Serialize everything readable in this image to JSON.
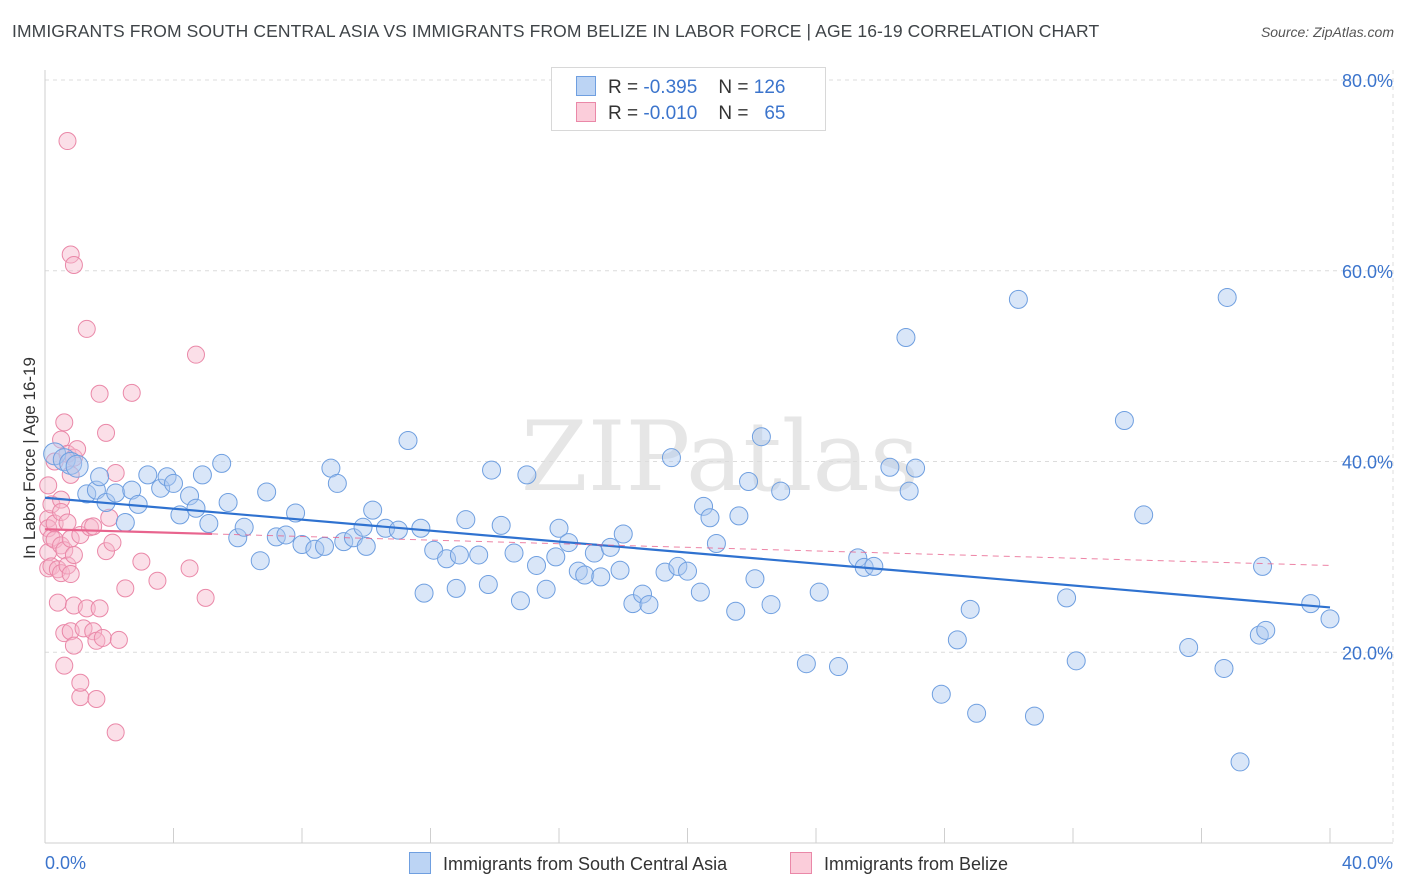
{
  "title": "IMMIGRANTS FROM SOUTH CENTRAL ASIA VS IMMIGRANTS FROM BELIZE IN LABOR FORCE | AGE 16-19 CORRELATION CHART",
  "source": "Source: ZipAtlas.com",
  "watermark": "ZIPatlas",
  "legend": {
    "rows": [
      {
        "r_label": "R =",
        "r_value": "-0.395",
        "n_label": "N =",
        "n_value": "126"
      },
      {
        "r_label": "R =",
        "r_value": "-0.010",
        "n_label": "N =",
        "n_value": "65"
      }
    ]
  },
  "colors": {
    "blue_fill": "#aac8f0",
    "blue_stroke": "#6f9fe0",
    "blue_line": "#2f72d0",
    "pink_fill": "#f6b8cc",
    "pink_stroke": "#ea88a8",
    "pink_line": "#e8648e",
    "tick_label": "#3b74cc",
    "grid": "#dcdcdc"
  },
  "chart_data": {
    "type": "scatter",
    "title": "IMMIGRANTS FROM SOUTH CENTRAL ASIA VS IMMIGRANTS FROM BELIZE IN LABOR FORCE | AGE 16-19 CORRELATION CHART",
    "xlabel": "",
    "ylabel": "In Labor Force | Age 16-19",
    "xlim": [
      0,
      40
    ],
    "ylim": [
      0,
      80
    ],
    "x_tick_labels": [
      "0.0%",
      "40.0%"
    ],
    "y_ticks": [
      20,
      40,
      60,
      80
    ],
    "y_tick_labels": [
      "20.0%",
      "40.0%",
      "60.0%",
      "80.0%"
    ],
    "grid": true,
    "legend_position": "top-center",
    "series": [
      {
        "name": "Immigrants from South Central Asia",
        "r": -0.395,
        "n": 126,
        "trend": {
          "x": [
            0,
            40
          ],
          "y": [
            36.2,
            24.7
          ]
        },
        "points": [
          [
            0.3,
            40.8
          ],
          [
            0.6,
            40.2
          ],
          [
            0.8,
            39.8
          ],
          [
            1.0,
            39.5
          ],
          [
            1.3,
            36.6
          ],
          [
            1.6,
            37.0
          ],
          [
            1.7,
            38.4
          ],
          [
            1.9,
            35.7
          ],
          [
            2.2,
            36.7
          ],
          [
            2.5,
            33.6
          ],
          [
            2.7,
            37.0
          ],
          [
            2.9,
            35.5
          ],
          [
            3.2,
            38.6
          ],
          [
            3.6,
            37.2
          ],
          [
            3.8,
            38.4
          ],
          [
            4.0,
            37.7
          ],
          [
            4.2,
            34.4
          ],
          [
            4.5,
            36.4
          ],
          [
            4.7,
            35.1
          ],
          [
            4.9,
            38.6
          ],
          [
            5.1,
            33.5
          ],
          [
            5.5,
            39.8
          ],
          [
            5.7,
            35.7
          ],
          [
            6.0,
            32.0
          ],
          [
            6.2,
            33.1
          ],
          [
            6.7,
            29.6
          ],
          [
            6.9,
            36.8
          ],
          [
            7.2,
            32.1
          ],
          [
            7.5,
            32.3
          ],
          [
            7.8,
            34.6
          ],
          [
            8.0,
            31.3
          ],
          [
            8.4,
            30.8
          ],
          [
            8.7,
            31.1
          ],
          [
            8.9,
            39.3
          ],
          [
            9.1,
            37.7
          ],
          [
            9.3,
            31.6
          ],
          [
            9.6,
            32.0
          ],
          [
            9.9,
            33.1
          ],
          [
            10.0,
            31.1
          ],
          [
            10.2,
            34.9
          ],
          [
            10.6,
            33.0
          ],
          [
            11.0,
            32.8
          ],
          [
            11.3,
            42.2
          ],
          [
            11.7,
            33.0
          ],
          [
            11.8,
            26.2
          ],
          [
            12.1,
            30.7
          ],
          [
            12.5,
            29.8
          ],
          [
            12.8,
            26.7
          ],
          [
            12.9,
            30.2
          ],
          [
            13.1,
            33.9
          ],
          [
            13.5,
            30.2
          ],
          [
            13.8,
            27.1
          ],
          [
            13.9,
            39.1
          ],
          [
            14.2,
            33.3
          ],
          [
            14.6,
            30.4
          ],
          [
            14.8,
            25.4
          ],
          [
            15.0,
            38.6
          ],
          [
            15.3,
            29.1
          ],
          [
            15.6,
            26.6
          ],
          [
            15.9,
            30.0
          ],
          [
            16.0,
            33.0
          ],
          [
            16.3,
            31.5
          ],
          [
            16.6,
            28.5
          ],
          [
            16.8,
            28.1
          ],
          [
            17.1,
            30.4
          ],
          [
            17.3,
            27.9
          ],
          [
            17.6,
            31.0
          ],
          [
            17.9,
            28.6
          ],
          [
            18.0,
            32.4
          ],
          [
            18.3,
            25.1
          ],
          [
            18.6,
            26.1
          ],
          [
            18.8,
            25.0
          ],
          [
            19.3,
            28.4
          ],
          [
            19.5,
            40.4
          ],
          [
            19.7,
            29.0
          ],
          [
            20.0,
            28.5
          ],
          [
            20.4,
            26.3
          ],
          [
            20.5,
            35.3
          ],
          [
            20.7,
            34.1
          ],
          [
            20.9,
            31.4
          ],
          [
            21.5,
            24.3
          ],
          [
            21.6,
            34.3
          ],
          [
            21.9,
            37.9
          ],
          [
            22.1,
            27.7
          ],
          [
            22.3,
            42.6
          ],
          [
            22.6,
            25.0
          ],
          [
            22.9,
            36.9
          ],
          [
            23.7,
            18.8
          ],
          [
            24.1,
            26.3
          ],
          [
            24.7,
            18.5
          ],
          [
            25.3,
            29.9
          ],
          [
            25.5,
            28.9
          ],
          [
            25.8,
            29.0
          ],
          [
            26.3,
            39.4
          ],
          [
            26.8,
            53.0
          ],
          [
            26.9,
            36.9
          ],
          [
            27.1,
            39.3
          ],
          [
            27.9,
            15.6
          ],
          [
            28.4,
            21.3
          ],
          [
            28.8,
            24.5
          ],
          [
            29.0,
            13.6
          ],
          [
            30.3,
            57.0
          ],
          [
            30.8,
            13.3
          ],
          [
            31.8,
            25.7
          ],
          [
            32.1,
            19.1
          ],
          [
            33.6,
            44.3
          ],
          [
            34.2,
            34.4
          ],
          [
            35.6,
            20.5
          ],
          [
            36.7,
            18.3
          ],
          [
            36.8,
            57.2
          ],
          [
            37.2,
            8.5
          ],
          [
            37.8,
            21.8
          ],
          [
            37.9,
            29.0
          ],
          [
            38.0,
            22.3
          ],
          [
            39.4,
            25.1
          ],
          [
            40.0,
            23.5
          ]
        ],
        "sizes_note": "large bubbles near x=0-1"
      },
      {
        "name": "Immigrants from Belize",
        "r": -0.01,
        "n": 65,
        "trend": {
          "x": [
            0,
            40
          ],
          "y": [
            32.9,
            29.1
          ]
        },
        "points": [
          [
            0.1,
            37.5
          ],
          [
            0.1,
            34.0
          ],
          [
            0.1,
            33.0
          ],
          [
            0.1,
            30.5
          ],
          [
            0.1,
            28.8
          ],
          [
            0.2,
            35.5
          ],
          [
            0.2,
            32.0
          ],
          [
            0.2,
            29.0
          ],
          [
            0.3,
            40.0
          ],
          [
            0.3,
            33.5
          ],
          [
            0.3,
            31.8
          ],
          [
            0.4,
            28.7
          ],
          [
            0.4,
            25.2
          ],
          [
            0.5,
            42.3
          ],
          [
            0.5,
            36.0
          ],
          [
            0.5,
            34.7
          ],
          [
            0.5,
            31.2
          ],
          [
            0.5,
            28.3
          ],
          [
            0.6,
            44.1
          ],
          [
            0.6,
            30.7
          ],
          [
            0.6,
            22.0
          ],
          [
            0.6,
            18.6
          ],
          [
            0.7,
            73.6
          ],
          [
            0.7,
            40.8
          ],
          [
            0.7,
            33.6
          ],
          [
            0.7,
            29.1
          ],
          [
            0.8,
            61.7
          ],
          [
            0.8,
            38.6
          ],
          [
            0.8,
            31.9
          ],
          [
            0.8,
            28.2
          ],
          [
            0.8,
            22.2
          ],
          [
            0.9,
            60.6
          ],
          [
            0.9,
            40.4
          ],
          [
            0.9,
            30.2
          ],
          [
            0.9,
            24.9
          ],
          [
            0.9,
            20.7
          ],
          [
            1.0,
            41.3
          ],
          [
            1.1,
            32.3
          ],
          [
            1.1,
            15.3
          ],
          [
            1.1,
            16.8
          ],
          [
            1.2,
            22.5
          ],
          [
            1.3,
            53.9
          ],
          [
            1.3,
            24.6
          ],
          [
            1.4,
            33.1
          ],
          [
            1.5,
            33.2
          ],
          [
            1.5,
            22.2
          ],
          [
            1.6,
            21.2
          ],
          [
            1.6,
            15.1
          ],
          [
            1.7,
            47.1
          ],
          [
            1.7,
            24.6
          ],
          [
            1.8,
            21.5
          ],
          [
            1.9,
            43.0
          ],
          [
            1.9,
            30.6
          ],
          [
            2.0,
            34.1
          ],
          [
            2.1,
            31.5
          ],
          [
            2.2,
            38.8
          ],
          [
            2.2,
            11.6
          ],
          [
            2.3,
            21.3
          ],
          [
            2.7,
            47.2
          ],
          [
            4.5,
            28.8
          ],
          [
            4.7,
            51.2
          ],
          [
            5.0,
            25.7
          ],
          [
            3.0,
            29.5
          ],
          [
            2.5,
            26.7
          ],
          [
            3.5,
            27.5
          ]
        ]
      }
    ]
  },
  "bottom_legend": [
    {
      "label": "Immigrants from South Central Asia"
    },
    {
      "label": "Immigrants from Belize"
    }
  ]
}
